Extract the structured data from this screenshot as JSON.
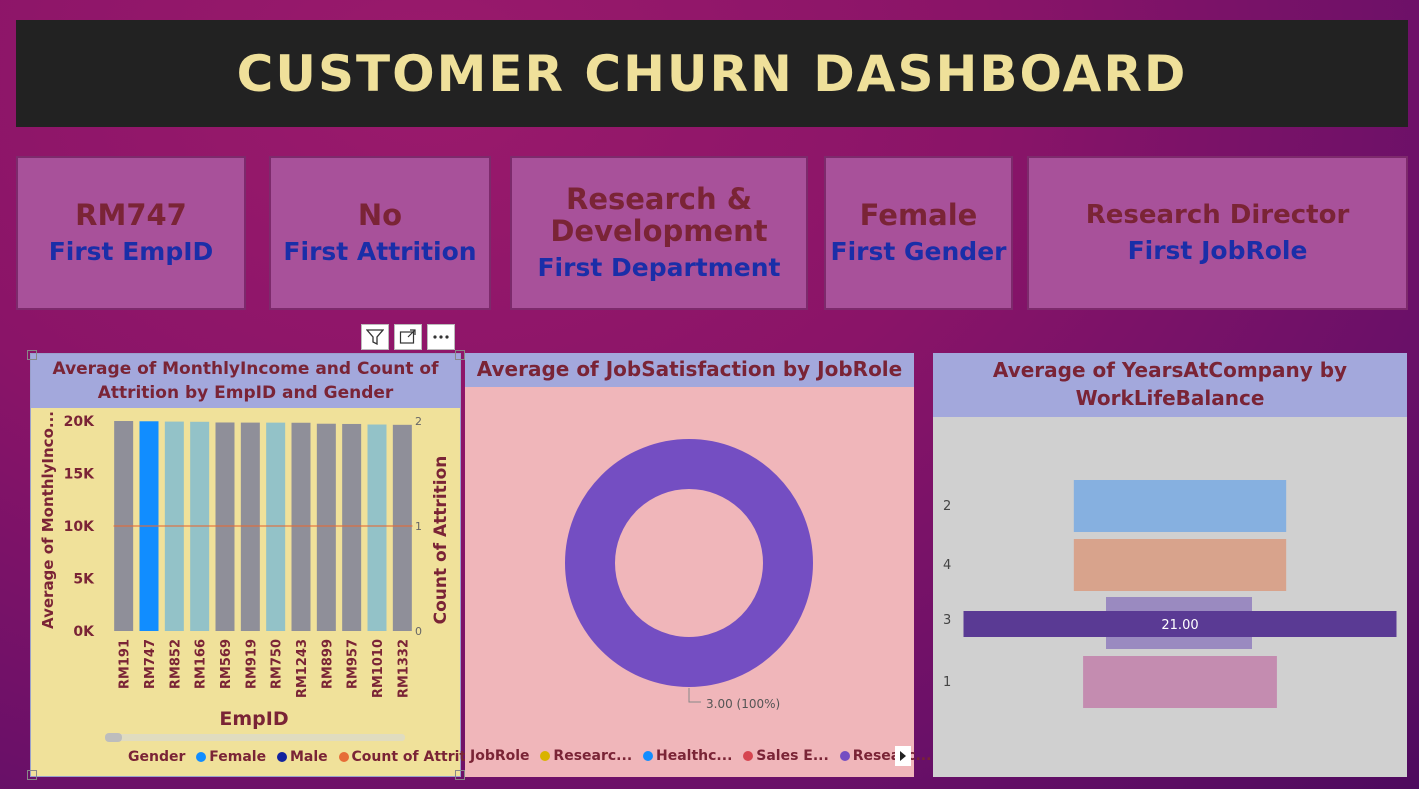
{
  "header": {
    "title": "CUSTOMER CHURN DASHBOARD"
  },
  "cards": [
    {
      "value": "RM747",
      "label": "First EmpID"
    },
    {
      "value": "No",
      "label": "First Attrition"
    },
    {
      "value": "Research & Development",
      "label": "First Department"
    },
    {
      "value": "Female",
      "label": "First Gender"
    },
    {
      "value": "Research Director",
      "label": "First JobRole"
    }
  ],
  "visual_toolbar": {
    "filter_icon": "filter-icon",
    "focus_icon": "focus-mode-icon",
    "more_icon": "more-options-icon"
  },
  "chart1": {
    "title": "Average of MonthlyIncome and Count of Attrition by EmpID and Gender",
    "legend_title": "Gender",
    "legend": [
      "Female",
      "Male",
      "Count of Attrition"
    ],
    "ylabel_left": "Average of MonthlyInco...",
    "ylabel_right": "Count of Attrition",
    "xlabel": "EmpID",
    "left_ticks": [
      "20K",
      "15K",
      "10K",
      "5K",
      "0K"
    ],
    "right_ticks": [
      "2",
      "1",
      "0"
    ],
    "colors": {
      "female": "#118dff",
      "male": "#12239e",
      "attrition": "#e66c37"
    }
  },
  "chart2": {
    "title": "Average of JobSatisfaction by JobRole",
    "legend_title": "JobRole",
    "legend": [
      {
        "label": "Researc...",
        "color": "#d9b300"
      },
      {
        "label": "Healthc...",
        "color": "#118dff"
      },
      {
        "label": "Sales E...",
        "color": "#d64550"
      },
      {
        "label": "Researc...",
        "color": "#744ec2"
      }
    ],
    "slice_label": "3.00 (100%)",
    "more_icon": "chevron-right-icon"
  },
  "chart3": {
    "title": "Average of YearsAtCompany by WorkLifeBalance",
    "data_label": "21.00"
  },
  "chart_data": [
    {
      "type": "bar",
      "title": "Average of MonthlyIncome and Count of Attrition by EmpID and Gender",
      "xlabel": "EmpID",
      "ylabel": "Average of MonthlyInco...",
      "y2label": "Count of Attrition",
      "categories": [
        "RM191",
        "RM747",
        "RM852",
        "RM166",
        "RM569",
        "RM919",
        "RM750",
        "RM1243",
        "RM899",
        "RM957",
        "RM1010",
        "RM1332"
      ],
      "series": [
        {
          "name": "Average of MonthlyIncome",
          "values": [
            19999,
            19973,
            19943,
            19926,
            19859,
            19847,
            19845,
            19833,
            19740,
            19717,
            19665,
            19636
          ]
        },
        {
          "name": "Count of Attrition",
          "values": [
            1,
            1,
            1,
            1,
            1,
            1,
            1,
            1,
            1,
            1,
            1,
            1
          ]
        }
      ],
      "ylim": [
        0,
        20000
      ],
      "y2lim": [
        0,
        2
      ],
      "legend_placement": "bottom"
    },
    {
      "type": "pie",
      "title": "Average of JobSatisfaction by JobRole",
      "categories": [
        "Researc..."
      ],
      "values": [
        3.0
      ],
      "labels": [
        "3.00 (100%)"
      ]
    },
    {
      "type": "bar",
      "title": "Average of YearsAtCompany by WorkLifeBalance",
      "categories": [
        "2",
        "4",
        "3",
        "1"
      ],
      "values": [
        10.3,
        10.3,
        21.0,
        9.4
      ],
      "orientation": "horizontal"
    }
  ]
}
